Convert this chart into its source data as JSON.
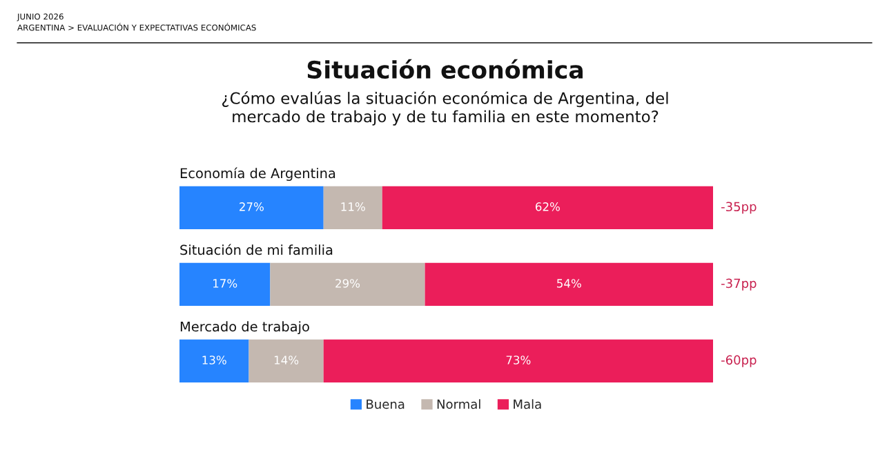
{
  "chart_data": {
    "type": "bar",
    "orientation": "horizontal",
    "stacked": true,
    "title": "Situación económica",
    "subtitle": "¿Cómo evalúas la situación económica de Argentina, del\nmercado de trabajo y de tu familia en este momento?",
    "categories": [
      "Economía de Argentina",
      "Situación de mi familia",
      "Mercado de trabajo"
    ],
    "series": [
      {
        "name": "Buena",
        "color": "#2684ff",
        "values": [
          27,
          17,
          13
        ],
        "value_labels": [
          "27%",
          "17%",
          "13%"
        ]
      },
      {
        "name": "Normal",
        "color": "#c4b8b0",
        "values": [
          11,
          29,
          14
        ],
        "value_labels": [
          "11%",
          "29%",
          "14%"
        ]
      },
      {
        "name": "Mala",
        "color": "#eb1e5a",
        "values": [
          62,
          54,
          73
        ],
        "value_labels": [
          "62%",
          "54%",
          "73%"
        ]
      }
    ],
    "xlim": [
      0,
      100
    ],
    "tick_labels": "y",
    "legend": "bottom",
    "annotations": [
      "JUNIO 2026",
      "ARGENTINA > EVALUACIÓN Y EXPECTATIVAS ECONÓMICAS",
      "-35pp",
      "-37pp",
      "-60pp"
    ]
  }
}
